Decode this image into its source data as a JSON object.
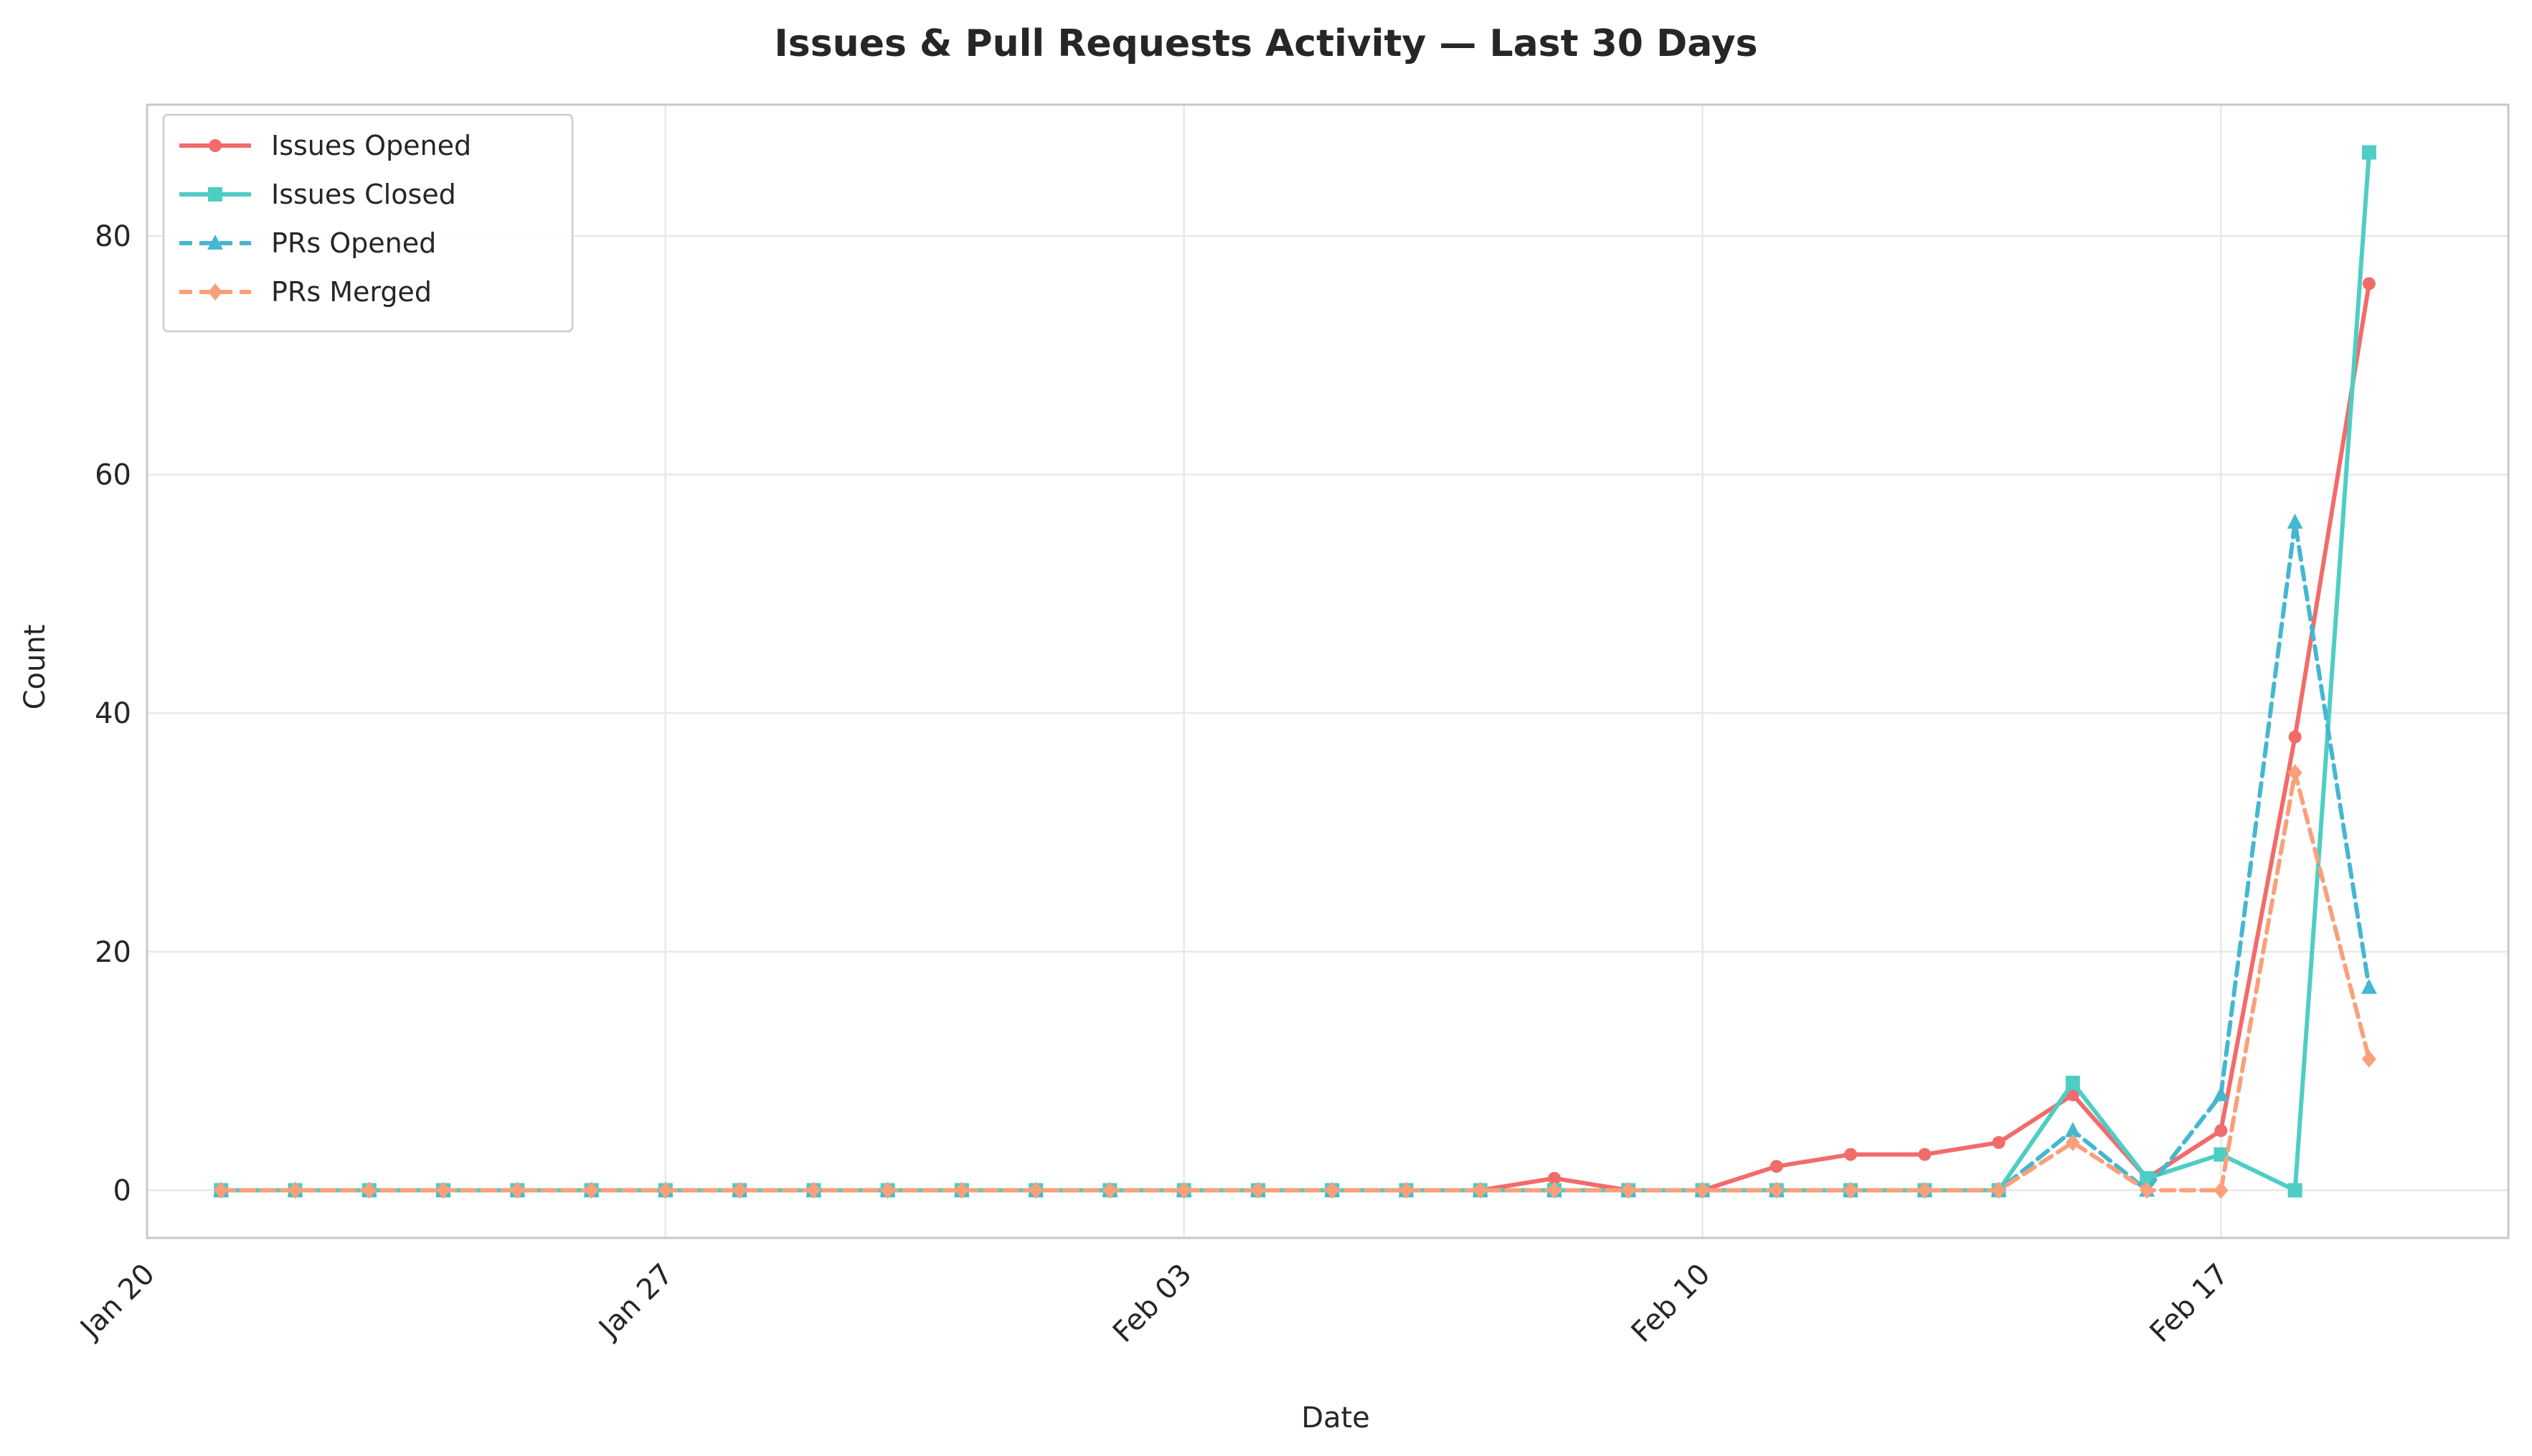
{
  "chart_data": {
    "type": "line",
    "title": "Issues & Pull Requests Activity — Last 30 Days",
    "xlabel": "Date",
    "ylabel": "Count",
    "x": [
      "2024-01-21",
      "2024-01-22",
      "2024-01-23",
      "2024-01-24",
      "2024-01-25",
      "2024-01-26",
      "2024-01-27",
      "2024-01-28",
      "2024-01-29",
      "2024-01-30",
      "2024-01-31",
      "2024-02-01",
      "2024-02-02",
      "2024-02-03",
      "2024-02-04",
      "2024-02-05",
      "2024-02-06",
      "2024-02-07",
      "2024-02-08",
      "2024-02-09",
      "2024-02-10",
      "2024-02-11",
      "2024-02-12",
      "2024-02-13",
      "2024-02-14",
      "2024-02-15",
      "2024-02-16",
      "2024-02-17",
      "2024-02-18",
      "2024-02-19",
      "2024-02-20"
    ],
    "xlim": [
      "2024-01-20",
      "2024-02-20"
    ],
    "ylim": [
      -4,
      91
    ],
    "x_ticks": [
      {
        "date": "2024-01-20",
        "label": "Jan 20"
      },
      {
        "date": "2024-01-27",
        "label": "Jan 27"
      },
      {
        "date": "2024-02-03",
        "label": "Feb 03"
      },
      {
        "date": "2024-02-10",
        "label": "Feb 10"
      },
      {
        "date": "2024-02-17",
        "label": "Feb 17"
      }
    ],
    "y_ticks": [
      0,
      20,
      40,
      60,
      80
    ],
    "grid": true,
    "legend_position": "top-left",
    "series": [
      {
        "name": "Issues Opened",
        "color": "#f26b6b",
        "marker": "circle",
        "dashed": false,
        "values": [
          0,
          0,
          0,
          0,
          0,
          0,
          0,
          0,
          0,
          0,
          0,
          0,
          0,
          0,
          0,
          0,
          0,
          0,
          1,
          0,
          0,
          2,
          3,
          3,
          4,
          8,
          1,
          5,
          38,
          76,
          null
        ]
      },
      {
        "name": "Issues Closed",
        "color": "#4ecdc4",
        "marker": "square",
        "dashed": false,
        "values": [
          0,
          0,
          0,
          0,
          0,
          0,
          0,
          0,
          0,
          0,
          0,
          0,
          0,
          0,
          0,
          0,
          0,
          0,
          0,
          0,
          0,
          0,
          0,
          0,
          0,
          9,
          1,
          3,
          0,
          87,
          null
        ]
      },
      {
        "name": "PRs Opened",
        "color": "#45b7d1",
        "marker": "triangle",
        "dashed": true,
        "values": [
          0,
          0,
          0,
          0,
          0,
          0,
          0,
          0,
          0,
          0,
          0,
          0,
          0,
          0,
          0,
          0,
          0,
          0,
          0,
          0,
          0,
          0,
          0,
          0,
          0,
          5,
          0,
          8,
          56,
          17,
          null
        ]
      },
      {
        "name": "PRs Merged",
        "color": "#f9a07a",
        "marker": "diamond",
        "dashed": true,
        "values": [
          0,
          0,
          0,
          0,
          0,
          0,
          0,
          0,
          0,
          0,
          0,
          0,
          0,
          0,
          0,
          0,
          0,
          0,
          0,
          0,
          0,
          0,
          0,
          0,
          0,
          4,
          0,
          0,
          35,
          11,
          null
        ]
      }
    ]
  }
}
